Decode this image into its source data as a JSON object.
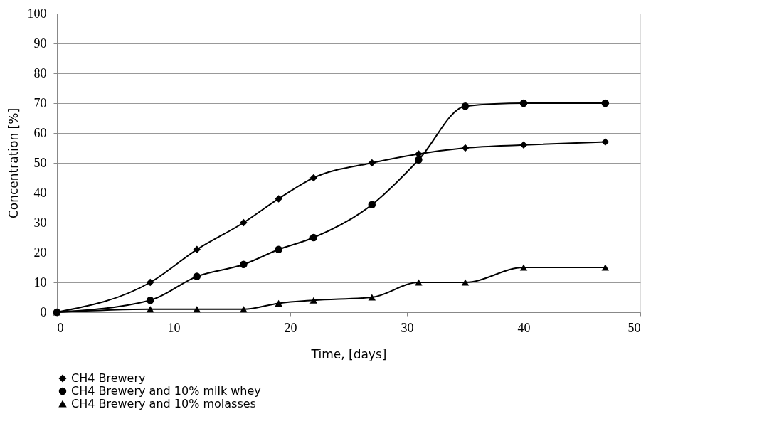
{
  "chart_data": {
    "type": "line",
    "xlabel": "Time, [days]",
    "ylabel": "Concentration [%]",
    "xlim": [
      0,
      50
    ],
    "xticks": [
      0,
      10,
      20,
      30,
      40,
      50
    ],
    "ylim": [
      0,
      100
    ],
    "yticks": [
      0,
      10,
      20,
      30,
      40,
      50,
      60,
      70,
      80,
      90,
      100
    ],
    "grid": "y",
    "legend": "bottom",
    "line_style": "solid",
    "series": [
      {
        "name": "CH4 Brewery",
        "color": "#000000",
        "marker": "diamond",
        "x": [
          0,
          8,
          12,
          16,
          19,
          22,
          27,
          31,
          35,
          40,
          47
        ],
        "values": [
          0,
          10,
          21,
          30,
          38,
          45,
          50,
          53,
          55,
          56,
          57
        ]
      },
      {
        "name": "CH4 Brewery and 10% milk whey",
        "color": "#000000",
        "marker": "circle",
        "x": [
          0,
          8,
          12,
          16,
          19,
          22,
          27,
          31,
          35,
          40,
          47
        ],
        "values": [
          0,
          4,
          12,
          16,
          21,
          25,
          36,
          51,
          69,
          70,
          70
        ]
      },
      {
        "name": "CH4 Brewery and 10% molasses",
        "color": "#000000",
        "marker": "triangle",
        "x": [
          0,
          8,
          12,
          16,
          19,
          22,
          27,
          31,
          35,
          40,
          47
        ],
        "values": [
          0,
          1,
          1,
          1,
          3,
          4,
          5,
          10,
          10,
          15,
          15
        ]
      }
    ]
  }
}
